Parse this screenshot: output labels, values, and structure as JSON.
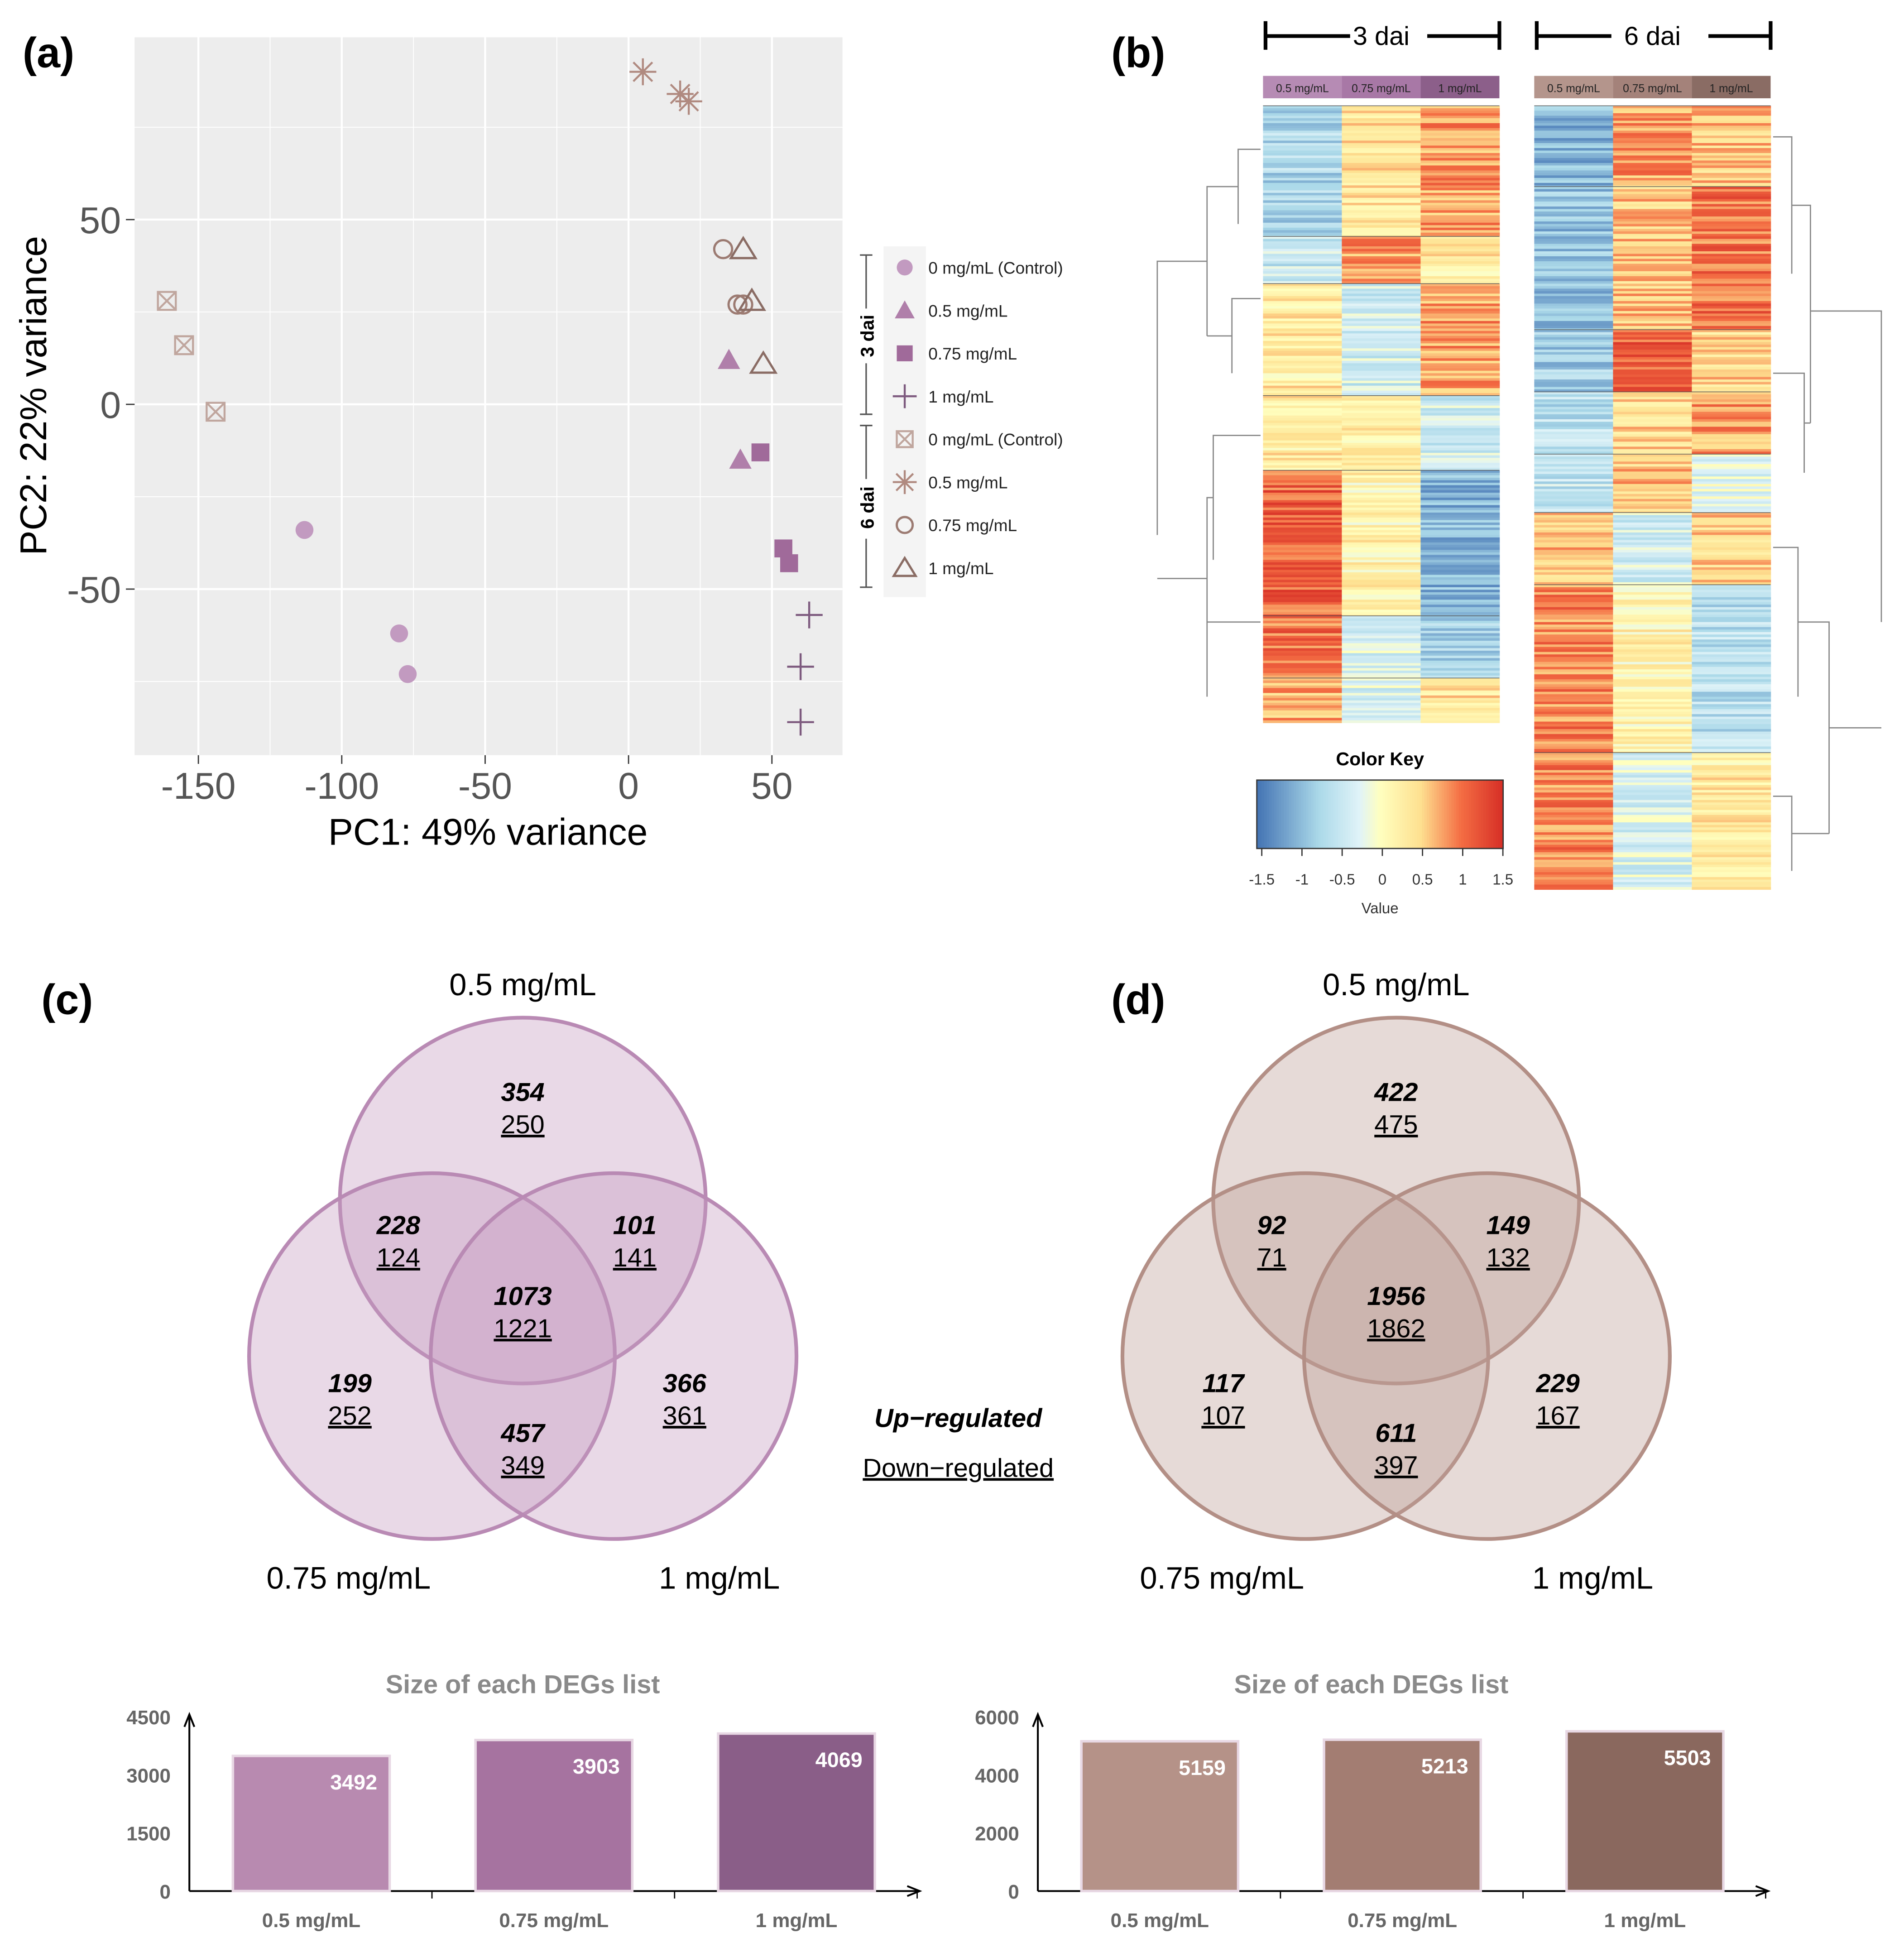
{
  "panel_labels": {
    "a": "(a)",
    "b": "(b)",
    "c": "(c)",
    "d": "(d)"
  },
  "chart_data": [
    {
      "type": "scatter",
      "id": "pca",
      "xlabel": "PC1: 49% variance",
      "ylabel": "PC2: 22% variance",
      "xlim": [
        -173,
        75
      ],
      "ylim": [
        -94,
        98
      ],
      "xticks": [
        -150,
        -100,
        -50,
        0,
        50
      ],
      "yticks": [
        -50,
        0,
        50
      ],
      "grid": true,
      "legend_position": "right",
      "legend_groups": [
        {
          "label": "3 dai"
        },
        {
          "label": "6 dai"
        }
      ],
      "series": [
        {
          "name": "0 mg/mL (Control)",
          "group": "3 dai",
          "marker": "circle-filled",
          "color": "#c29ac0",
          "points": [
            [
              -113,
              -34
            ],
            [
              -80,
              -62
            ],
            [
              -77,
              -73
            ]
          ]
        },
        {
          "name": "0.5 mg/mL",
          "group": "3 dai",
          "marker": "triangle-filled",
          "color": "#b07faa",
          "points": [
            [
              35,
              12
            ],
            [
              39,
              -15
            ]
          ]
        },
        {
          "name": "0.75 mg/mL",
          "group": "3 dai",
          "marker": "square-filled",
          "color": "#a06a9a",
          "points": [
            [
              46,
              -13
            ],
            [
              54,
              -39
            ],
            [
              56,
              -43
            ]
          ]
        },
        {
          "name": "1 mg/mL",
          "group": "3 dai",
          "marker": "plus",
          "color": "#7d5a7e",
          "points": [
            [
              63,
              -57
            ],
            [
              60,
              -71
            ],
            [
              60,
              -86
            ]
          ]
        },
        {
          "name": "0 mg/mL (Control)",
          "group": "6 dai",
          "marker": "boxx",
          "color": "#c0a69e",
          "points": [
            [
              -161,
              28
            ],
            [
              -155,
              16
            ],
            [
              -144,
              -2
            ]
          ]
        },
        {
          "name": "0.5 mg/mL",
          "group": "6 dai",
          "marker": "star",
          "color": "#b08a80",
          "points": [
            [
              5,
              90
            ],
            [
              18,
              84
            ],
            [
              21,
              82
            ]
          ]
        },
        {
          "name": "0.75 mg/mL",
          "group": "6 dai",
          "marker": "circle-open",
          "color": "#9c7b72",
          "points": [
            [
              33,
              42
            ],
            [
              38,
              27
            ],
            [
              40,
              27
            ]
          ]
        },
        {
          "name": "1 mg/mL",
          "group": "6 dai",
          "marker": "triangle-open",
          "color": "#8a6c64",
          "points": [
            [
              40,
              42
            ],
            [
              43,
              28
            ],
            [
              47,
              11
            ]
          ]
        }
      ]
    },
    {
      "type": "heatmap",
      "id": "heatmaps",
      "color_key": {
        "title": "Color Key",
        "xlabel": "Value",
        "ticks": [
          "-1.5",
          "-1",
          "-0.5",
          "0",
          "0.5",
          "1",
          "1.5"
        ],
        "range": [
          -1.5,
          1.5
        ]
      },
      "panels": [
        {
          "title": "3 dai",
          "columns": [
            "0.5 mg/mL",
            "0.75 mg/mL",
            "1 mg/mL"
          ],
          "header_colors": [
            "#b68bb4",
            "#a878a6",
            "#8c5f8a"
          ],
          "clusters": [
            [
              -0.7,
              0.4,
              0.8
            ],
            [
              -0.5,
              0.8,
              0.3
            ],
            [
              0.3,
              -0.4,
              0.8
            ],
            [
              0.3,
              0.3,
              -0.4
            ],
            [
              1.1,
              0.2,
              -1.0
            ],
            [
              1.0,
              -0.3,
              -0.8
            ],
            [
              0.7,
              -0.3,
              0.4
            ]
          ]
        },
        {
          "title": "6 dai",
          "columns": [
            "0.5 mg/mL",
            "0.75 mg/mL",
            "1 mg/mL"
          ],
          "header_colors": [
            "#b4958c",
            "#a4827a",
            "#8a6c64"
          ],
          "clusters": [
            [
              -1.0,
              0.8,
              0.6
            ],
            [
              -0.9,
              0.6,
              1.0
            ],
            [
              -0.8,
              1.1,
              0.5
            ],
            [
              -0.6,
              0.5,
              0.8
            ],
            [
              -0.5,
              0.6,
              -0.2
            ],
            [
              0.6,
              -0.4,
              0.5
            ],
            [
              0.9,
              0.2,
              -0.6
            ],
            [
              0.9,
              -0.3,
              0.3
            ]
          ]
        }
      ]
    },
    {
      "type": "venn",
      "id": "venn-3dai",
      "sets": [
        "0.5 mg/mL",
        "0.75 mg/mL",
        "1 mg/mL"
      ],
      "color": "#c49bc0",
      "stroke": "#b98ab4",
      "regions": {
        "only_05": {
          "up": "354",
          "down": "250"
        },
        "05_075": {
          "up": "228",
          "down": "124"
        },
        "05_1": {
          "up": "101",
          "down": "141"
        },
        "all": {
          "up": "1073",
          "down": "1221"
        },
        "only_075": {
          "up": "199",
          "down": "252"
        },
        "075_1": {
          "up": "457",
          "down": "349"
        },
        "only_1": {
          "up": "366",
          "down": "361"
        }
      }
    },
    {
      "type": "venn",
      "id": "venn-6dai",
      "sets": [
        "0.5 mg/mL",
        "0.75 mg/mL",
        "1 mg/mL"
      ],
      "color": "#bc9e96",
      "stroke": "#b38f86",
      "regions": {
        "only_05": {
          "up": "422",
          "down": "475"
        },
        "05_075": {
          "up": "92",
          "down": "71"
        },
        "05_1": {
          "up": "149",
          "down": "132"
        },
        "all": {
          "up": "1956",
          "down": "1862"
        },
        "only_075": {
          "up": "117",
          "down": "107"
        },
        "075_1": {
          "up": "611",
          "down": "397"
        },
        "only_1": {
          "up": "229",
          "down": "167"
        }
      }
    },
    {
      "type": "bar",
      "id": "bars-3dai",
      "title": "Size of each DEGs list",
      "categories": [
        "0.5 mg/mL",
        "0.75 mg/mL",
        "1 mg/mL"
      ],
      "values": [
        3492,
        3903,
        4069
      ],
      "colors": [
        "#b88ab0",
        "#a673a0",
        "#8a5e88"
      ],
      "ylim": [
        0,
        4500
      ],
      "yticks": [
        0,
        1500,
        3000,
        4500
      ]
    },
    {
      "type": "bar",
      "id": "bars-6dai",
      "title": "Size of each DEGs list",
      "categories": [
        "0.5 mg/mL",
        "0.75 mg/mL",
        "1 mg/mL"
      ],
      "values": [
        5159,
        5213,
        5503
      ],
      "colors": [
        "#b59288",
        "#a37d72",
        "#8a685e"
      ],
      "ylim": [
        0,
        6000
      ],
      "yticks": [
        0,
        2000,
        4000,
        6000
      ]
    }
  ],
  "venn_legend": {
    "up": "Up−regulated",
    "down": "Down−regulated"
  }
}
